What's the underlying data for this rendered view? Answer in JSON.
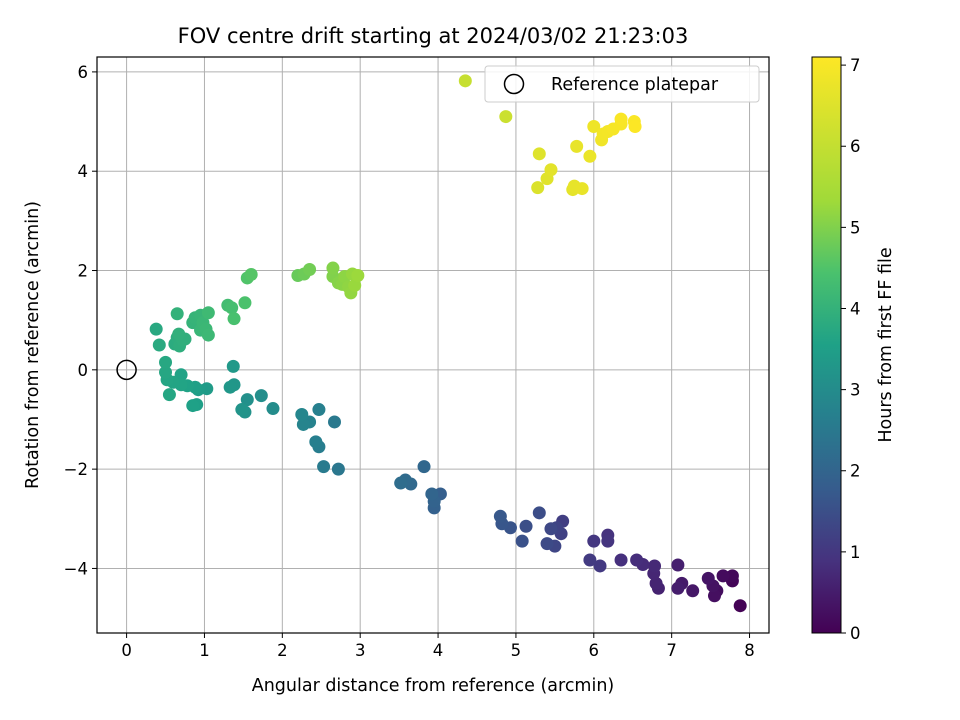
{
  "chart_data": {
    "type": "scatter",
    "title": "FOV centre drift starting at 2024/03/02 21:23:03",
    "xlabel": "Angular distance from reference (arcmin)",
    "ylabel": "Rotation from reference (arcmin)",
    "xlim": [
      -0.38,
      8.25
    ],
    "ylim": [
      -5.3,
      6.3
    ],
    "x_ticks": [
      0,
      1,
      2,
      3,
      4,
      5,
      6,
      7,
      8
    ],
    "x_tick_labels": [
      "0",
      "1",
      "2",
      "3",
      "4",
      "5",
      "6",
      "7",
      "8"
    ],
    "y_ticks": [
      -4,
      -2,
      0,
      2,
      4,
      6
    ],
    "y_tick_labels": [
      "−4",
      "−2",
      "0",
      "2",
      "4",
      "6"
    ],
    "grid": true,
    "legend": {
      "position": "top-right",
      "entries": [
        "Reference platepar"
      ]
    },
    "reference_point": {
      "x": 0,
      "y": 0,
      "marker": "open-circle",
      "color": "#000000"
    },
    "colorbar": {
      "label": "Hours from first FF file",
      "colormap": "viridis",
      "range": [
        0,
        7.1
      ],
      "ticks": [
        0,
        1,
        2,
        3,
        4,
        5,
        6,
        7
      ],
      "tick_labels": [
        "0",
        "1",
        "2",
        "3",
        "4",
        "5",
        "6",
        "7"
      ]
    },
    "points": [
      [
        7.88,
        -4.75,
        0.03
      ],
      [
        7.78,
        -4.25,
        0.08
      ],
      [
        7.78,
        -4.15,
        0.12
      ],
      [
        7.66,
        -4.15,
        0.18
      ],
      [
        7.58,
        -4.45,
        0.22
      ],
      [
        7.55,
        -4.55,
        0.26
      ],
      [
        7.53,
        -4.35,
        0.3
      ],
      [
        7.47,
        -4.2,
        0.35
      ],
      [
        7.27,
        -4.45,
        0.4
      ],
      [
        7.13,
        -4.3,
        0.45
      ],
      [
        7.08,
        -4.4,
        0.5
      ],
      [
        7.08,
        -3.93,
        0.55
      ],
      [
        6.83,
        -4.4,
        0.6
      ],
      [
        6.8,
        -4.3,
        0.64
      ],
      [
        6.77,
        -4.1,
        0.68
      ],
      [
        6.78,
        -3.95,
        0.72
      ],
      [
        6.63,
        -3.92,
        0.78
      ],
      [
        6.55,
        -3.83,
        0.82
      ],
      [
        6.35,
        -3.83,
        0.86
      ],
      [
        6.18,
        -3.33,
        0.9
      ],
      [
        6.18,
        -3.45,
        0.95
      ],
      [
        6.0,
        -3.45,
        1.0
      ],
      [
        6.08,
        -3.95,
        1.04
      ],
      [
        5.95,
        -3.83,
        1.08
      ],
      [
        5.6,
        -3.05,
        1.15
      ],
      [
        5.58,
        -3.3,
        1.2
      ],
      [
        5.52,
        -3.18,
        1.25
      ],
      [
        5.5,
        -3.55,
        1.3
      ],
      [
        5.45,
        -3.2,
        1.35
      ],
      [
        5.4,
        -3.5,
        1.4
      ],
      [
        5.3,
        -2.88,
        1.45
      ],
      [
        5.13,
        -3.15,
        1.5
      ],
      [
        5.08,
        -3.45,
        1.55
      ],
      [
        4.93,
        -3.18,
        1.6
      ],
      [
        4.82,
        -3.1,
        1.64
      ],
      [
        4.8,
        -2.95,
        1.68
      ],
      [
        4.03,
        -2.5,
        1.85
      ],
      [
        3.95,
        -2.78,
        1.9
      ],
      [
        3.95,
        -2.65,
        1.95
      ],
      [
        3.92,
        -2.5,
        2.0
      ],
      [
        3.82,
        -1.95,
        2.05
      ],
      [
        3.65,
        -2.3,
        2.1
      ],
      [
        3.58,
        -2.22,
        2.15
      ],
      [
        3.52,
        -2.28,
        2.2
      ],
      [
        2.72,
        -2.0,
        2.45
      ],
      [
        2.67,
        -1.05,
        2.5
      ],
      [
        2.53,
        -1.95,
        2.55
      ],
      [
        2.47,
        -1.55,
        2.6
      ],
      [
        2.43,
        -1.45,
        2.65
      ],
      [
        2.47,
        -0.8,
        2.7
      ],
      [
        2.35,
        -1.05,
        2.75
      ],
      [
        2.27,
        -1.1,
        2.8
      ],
      [
        2.25,
        -0.9,
        2.85
      ],
      [
        1.88,
        -0.78,
        3.0
      ],
      [
        1.73,
        -0.52,
        3.05
      ],
      [
        1.55,
        -0.6,
        3.1
      ],
      [
        1.52,
        -0.85,
        3.15
      ],
      [
        1.48,
        -0.8,
        3.2
      ],
      [
        1.38,
        -0.3,
        3.25
      ],
      [
        1.33,
        -0.35,
        3.3
      ],
      [
        1.37,
        0.07,
        3.35
      ],
      [
        1.03,
        -0.38,
        3.4
      ],
      [
        0.92,
        -0.4,
        3.45
      ],
      [
        0.9,
        -0.7,
        3.5
      ],
      [
        0.88,
        -0.35,
        3.52
      ],
      [
        0.85,
        -0.72,
        3.55
      ],
      [
        0.78,
        -0.32,
        3.58
      ],
      [
        0.7,
        -0.1,
        3.6
      ],
      [
        0.7,
        -0.3,
        3.62
      ],
      [
        0.6,
        -0.25,
        3.64
      ],
      [
        0.52,
        -0.2,
        3.66
      ],
      [
        0.55,
        -0.5,
        3.68
      ],
      [
        0.5,
        -0.05,
        3.7
      ],
      [
        0.5,
        0.15,
        3.72
      ],
      [
        0.38,
        0.82,
        3.75
      ],
      [
        0.42,
        0.5,
        3.78
      ],
      [
        0.62,
        0.52,
        3.82
      ],
      [
        0.65,
        0.65,
        3.85
      ],
      [
        0.68,
        0.48,
        3.88
      ],
      [
        0.72,
        0.6,
        3.9
      ],
      [
        0.75,
        0.62,
        3.92
      ],
      [
        0.67,
        0.72,
        3.95
      ],
      [
        0.65,
        1.13,
        3.98
      ],
      [
        0.85,
        0.95,
        4.02
      ],
      [
        0.88,
        1.05,
        4.05
      ],
      [
        0.95,
        1.1,
        4.08
      ],
      [
        0.95,
        0.8,
        4.1
      ],
      [
        0.98,
        0.95,
        4.12
      ],
      [
        1.02,
        0.82,
        4.15
      ],
      [
        1.05,
        0.7,
        4.18
      ],
      [
        1.05,
        1.15,
        4.22
      ],
      [
        1.3,
        1.3,
        4.3
      ],
      [
        1.35,
        1.25,
        4.35
      ],
      [
        1.38,
        1.03,
        4.4
      ],
      [
        1.52,
        1.35,
        4.45
      ],
      [
        1.55,
        1.85,
        4.5
      ],
      [
        1.6,
        1.92,
        4.55
      ],
      [
        2.2,
        1.9,
        4.75
      ],
      [
        2.28,
        1.93,
        4.8
      ],
      [
        2.35,
        2.02,
        4.85
      ],
      [
        2.65,
        1.88,
        5.0
      ],
      [
        2.65,
        2.05,
        5.03
      ],
      [
        2.72,
        1.75,
        5.06
      ],
      [
        2.77,
        1.72,
        5.1
      ],
      [
        2.8,
        1.88,
        5.13
      ],
      [
        2.85,
        1.67,
        5.16
      ],
      [
        2.88,
        1.55,
        5.19
      ],
      [
        2.9,
        1.93,
        5.22
      ],
      [
        2.93,
        1.7,
        5.25
      ],
      [
        2.97,
        1.9,
        5.28
      ],
      [
        4.35,
        5.82,
        6.05
      ],
      [
        4.87,
        5.1,
        6.15
      ],
      [
        5.28,
        3.67,
        6.45
      ],
      [
        5.3,
        4.35,
        6.5
      ],
      [
        5.4,
        3.85,
        6.55
      ],
      [
        5.45,
        4.03,
        6.6
      ],
      [
        5.73,
        3.63,
        6.65
      ],
      [
        5.75,
        3.7,
        6.68
      ],
      [
        5.78,
        4.5,
        6.7
      ],
      [
        5.85,
        3.65,
        6.72
      ],
      [
        5.95,
        4.3,
        6.76
      ],
      [
        6.0,
        4.9,
        6.82
      ],
      [
        6.1,
        4.63,
        6.86
      ],
      [
        6.12,
        4.75,
        6.9
      ],
      [
        6.18,
        4.8,
        6.93
      ],
      [
        6.25,
        4.85,
        6.96
      ],
      [
        6.35,
        4.95,
        6.99
      ],
      [
        6.35,
        5.05,
        7.02
      ],
      [
        6.52,
        5.0,
        7.05
      ],
      [
        6.53,
        4.9,
        7.08
      ]
    ]
  }
}
